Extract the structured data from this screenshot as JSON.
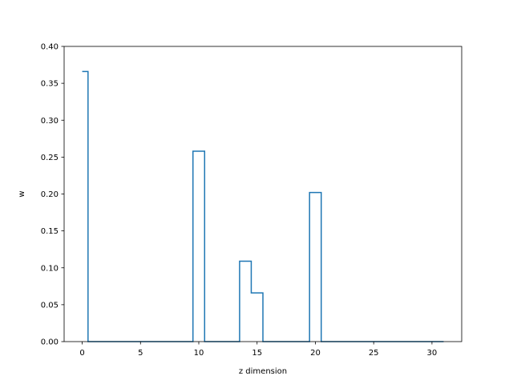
{
  "chart_data": {
    "type": "line",
    "drawstyle": "steps-mid",
    "title": "",
    "xlabel": "z dimension",
    "ylabel": "w",
    "xlim": [
      -1.55,
      32.55
    ],
    "ylim": [
      0,
      0.4
    ],
    "xticks": [
      0,
      5,
      10,
      15,
      20,
      25,
      30
    ],
    "xtick_labels": [
      "0",
      "5",
      "10",
      "15",
      "20",
      "25",
      "30"
    ],
    "yticks": [
      0.0,
      0.05,
      0.1,
      0.15,
      0.2,
      0.25,
      0.3,
      0.35,
      0.4
    ],
    "ytick_labels": [
      "0.00",
      "0.05",
      "0.10",
      "0.15",
      "0.20",
      "0.25",
      "0.30",
      "0.35",
      "0.40"
    ],
    "grid": false,
    "legend": false,
    "series": [
      {
        "color": "#1f77b4",
        "x": [
          0,
          1,
          2,
          3,
          4,
          5,
          6,
          7,
          8,
          9,
          10,
          11,
          12,
          13,
          14,
          15,
          16,
          17,
          18,
          19,
          20,
          21,
          22,
          23,
          24,
          25,
          26,
          27,
          28,
          29,
          30,
          31
        ],
        "y": [
          0.366,
          0,
          0,
          0,
          0,
          0,
          0,
          0,
          0,
          0,
          0.258,
          0,
          0,
          0,
          0.109,
          0.066,
          0,
          0,
          0,
          0,
          0.202,
          0,
          0,
          0,
          0,
          0,
          0,
          0,
          0,
          0,
          0,
          0
        ]
      }
    ]
  }
}
